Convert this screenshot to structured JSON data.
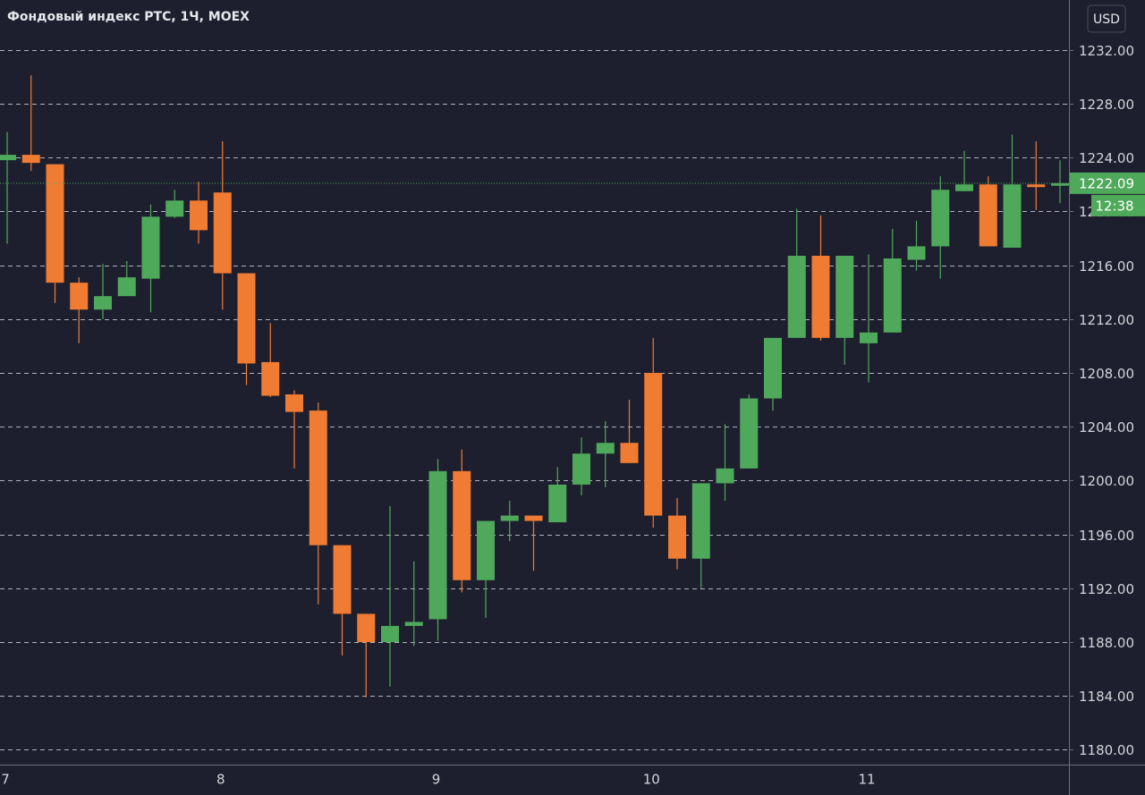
{
  "chart_data": {
    "type": "candlestick",
    "title": "Фондовый индекс РТС, 1Ч, MOEX",
    "currency": "USD",
    "categories": [
      "7",
      null,
      null,
      null,
      null,
      null,
      null,
      null,
      null,
      "8",
      null,
      null,
      null,
      null,
      null,
      null,
      null,
      null,
      "9",
      null,
      null,
      null,
      null,
      null,
      null,
      null,
      null,
      "10",
      null,
      null,
      null,
      null,
      null,
      null,
      null,
      null,
      "11",
      null,
      null,
      null,
      null,
      null,
      null,
      null,
      null
    ],
    "series": [
      {
        "name": "open",
        "values": [
          1223.8,
          1224.2,
          1223.5,
          1214.7,
          1212.7,
          1213.7,
          1215.0,
          1219.6,
          1220.8,
          1221.4,
          1215.4,
          1208.8,
          1206.4,
          1205.2,
          1195.2,
          1190.1,
          1188.0,
          1189.2,
          1189.7,
          1200.7,
          1192.6,
          1197.0,
          1197.4,
          1196.9,
          1199.7,
          1202.0,
          1202.8,
          1208.0,
          1197.4,
          1194.2,
          1199.8,
          1200.9,
          1206.1,
          1210.6,
          1216.7,
          1210.6,
          1210.2,
          1211.0,
          1216.4,
          1217.4,
          1221.5,
          1222.0,
          1217.3,
          1222.0,
          1221.9
        ]
      },
      {
        "name": "high",
        "values": [
          1225.9,
          1230.1,
          1223.5,
          1215.1,
          1216.1,
          1216.3,
          1220.5,
          1221.6,
          1222.2,
          1225.2,
          1215.4,
          1211.7,
          1206.7,
          1205.8,
          1195.2,
          1190.1,
          1198.1,
          1194.0,
          1201.6,
          1202.3,
          1197.0,
          1198.5,
          1197.4,
          1201.0,
          1203.2,
          1204.4,
          1206.0,
          1210.6,
          1198.7,
          1199.8,
          1204.2,
          1206.4,
          1210.6,
          1220.2,
          1219.7,
          1216.7,
          1216.8,
          1218.7,
          1219.3,
          1222.6,
          1224.5,
          1222.6,
          1225.7,
          1225.2,
          1223.8
        ]
      },
      {
        "name": "low",
        "values": [
          1217.6,
          1223.0,
          1213.2,
          1210.2,
          1212.0,
          1213.7,
          1212.5,
          1219.5,
          1217.6,
          1212.7,
          1207.1,
          1206.2,
          1200.9,
          1190.8,
          1187.0,
          1183.9,
          1184.7,
          1187.7,
          1188.1,
          1191.7,
          1189.8,
          1195.5,
          1193.3,
          1196.9,
          1198.9,
          1199.5,
          1201.3,
          1196.5,
          1193.4,
          1192.0,
          1198.5,
          1200.9,
          1205.2,
          1210.6,
          1210.4,
          1208.6,
          1207.3,
          1211.0,
          1215.6,
          1215.0,
          1221.5,
          1217.4,
          1217.3,
          1220.1,
          1220.6
        ]
      },
      {
        "name": "close",
        "values": [
          1224.2,
          1223.6,
          1214.7,
          1212.7,
          1213.7,
          1215.1,
          1219.6,
          1220.8,
          1218.6,
          1215.4,
          1208.7,
          1206.3,
          1205.1,
          1195.2,
          1190.1,
          1188.0,
          1189.2,
          1189.5,
          1200.7,
          1192.6,
          1197.0,
          1197.4,
          1197.0,
          1199.7,
          1202.0,
          1202.8,
          1201.3,
          1197.4,
          1194.2,
          1199.8,
          1200.9,
          1206.1,
          1210.6,
          1216.7,
          1210.6,
          1216.7,
          1211.0,
          1216.5,
          1217.4,
          1221.6,
          1222.0,
          1217.4,
          1222.0,
          1221.8,
          1222.09
        ]
      }
    ],
    "up_color": "#4fa95b",
    "down_color": "#f07b32",
    "ylim": [
      1178.9,
      1235.7
    ],
    "yticks": [
      {
        "value": 1180,
        "label": "1180.00"
      },
      {
        "value": 1184,
        "label": "1184.00"
      },
      {
        "value": 1188,
        "label": "1188.00"
      },
      {
        "value": 1192,
        "label": "1192.00"
      },
      {
        "value": 1196,
        "label": "1196.00"
      },
      {
        "value": 1200,
        "label": "1200.00"
      },
      {
        "value": 1204,
        "label": "1204.00"
      },
      {
        "value": 1208,
        "label": "1208.00"
      },
      {
        "value": 1212,
        "label": "1212.00"
      },
      {
        "value": 1216,
        "label": "1216.00"
      },
      {
        "value": 1220,
        "label": "1220.00"
      },
      {
        "value": 1224,
        "label": "1224.00"
      },
      {
        "value": 1228,
        "label": "1228.00"
      },
      {
        "value": 1232,
        "label": "1232.00"
      }
    ],
    "last_price": 1222.09,
    "countdown": "12:38",
    "grid": true
  }
}
